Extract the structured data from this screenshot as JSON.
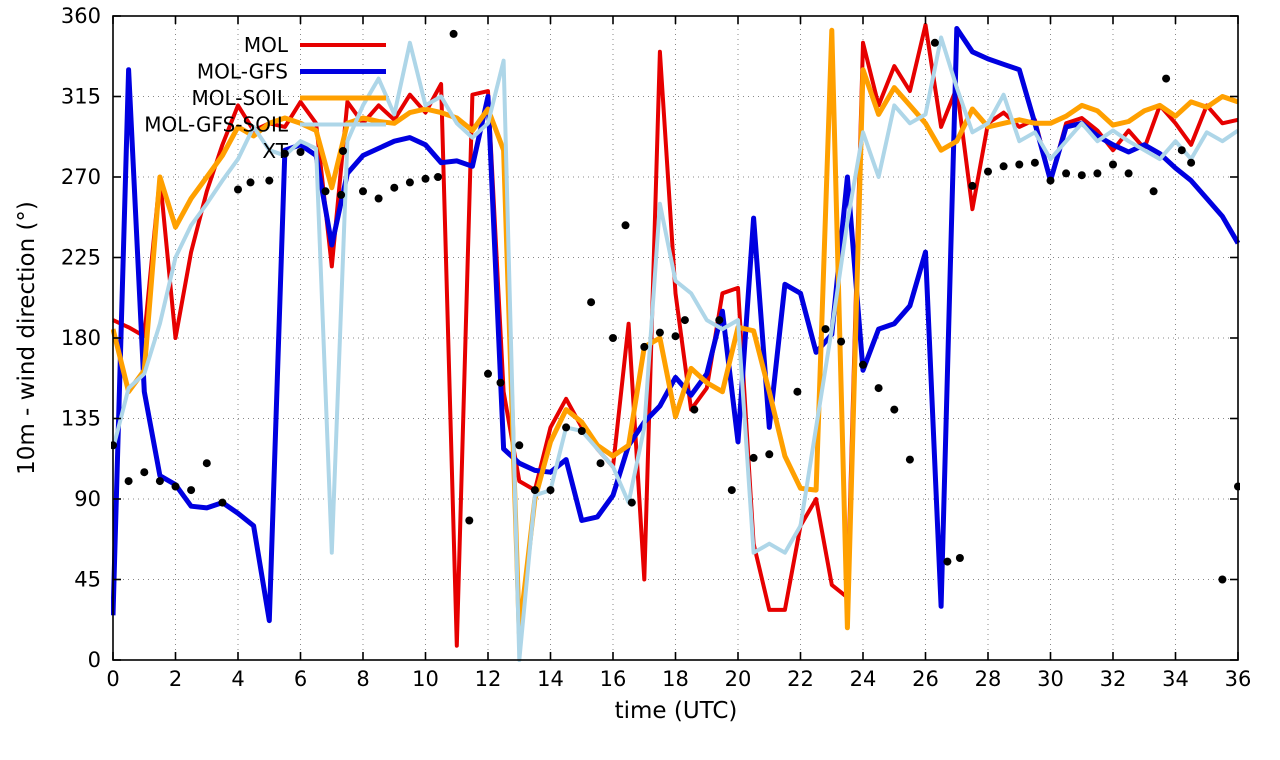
{
  "chart_data": {
    "type": "line",
    "title": "",
    "xlabel": "time (UTC)",
    "ylabel": "10m - wind direction (°)",
    "xlim": [
      0,
      36
    ],
    "ylim": [
      0,
      360
    ],
    "xticks": [
      0,
      2,
      4,
      6,
      8,
      10,
      12,
      14,
      16,
      18,
      20,
      22,
      24,
      26,
      28,
      30,
      32,
      34,
      36
    ],
    "yticks": [
      0,
      45,
      90,
      135,
      180,
      225,
      270,
      315,
      360
    ],
    "grid": "dotted",
    "legend_position": "top-left",
    "x_step": 0.5,
    "series": [
      {
        "name": "MOL",
        "type": "line",
        "color": "#e60000",
        "width": 4,
        "values": [
          190,
          186,
          181,
          270,
          180,
          228,
          262,
          288,
          310,
          296,
          300,
          298,
          312,
          300,
          220,
          312,
          300,
          310,
          302,
          316,
          306,
          322,
          8,
          316,
          318,
          150,
          100,
          95,
          130,
          146,
          130,
          118,
          108,
          188,
          45,
          340,
          205,
          140,
          152,
          205,
          208,
          65,
          28,
          28,
          75,
          90,
          42,
          35,
          345,
          310,
          332,
          318,
          355,
          298,
          320,
          252,
          300,
          306,
          298,
          302,
          268,
          300,
          303,
          296,
          285,
          296,
          286,
          310,
          300,
          288,
          310,
          300,
          302
        ]
      },
      {
        "name": "MOL-GFS",
        "type": "line",
        "color": "#0000e0",
        "width": 5,
        "values": [
          25,
          330,
          150,
          103,
          98,
          86,
          85,
          88,
          82,
          75,
          22,
          285,
          288,
          282,
          232,
          272,
          282,
          286,
          290,
          292,
          288,
          278,
          279,
          276,
          315,
          118,
          110,
          106,
          105,
          112,
          78,
          80,
          92,
          120,
          133,
          142,
          158,
          148,
          160,
          195,
          122,
          247,
          130,
          210,
          205,
          172,
          182,
          270,
          162,
          185,
          188,
          198,
          228,
          30,
          353,
          340,
          336,
          333,
          330,
          300,
          268,
          298,
          300,
          293,
          288,
          284,
          288,
          283,
          275,
          268,
          258,
          248,
          233
        ]
      },
      {
        "name": "MOL-SOIL",
        "type": "line",
        "color": "#ffa000",
        "width": 5,
        "values": [
          185,
          150,
          162,
          270,
          242,
          258,
          270,
          282,
          298,
          293,
          300,
          303,
          300,
          296,
          264,
          300,
          303,
          301,
          300,
          306,
          308,
          306,
          303,
          296,
          308,
          285,
          15,
          90,
          122,
          140,
          133,
          120,
          114,
          120,
          175,
          180,
          136,
          163,
          155,
          150,
          186,
          184,
          150,
          114,
          96,
          95,
          352,
          18,
          330,
          305,
          320,
          310,
          300,
          285,
          290,
          308,
          298,
          300,
          302,
          300,
          300,
          304,
          310,
          307,
          299,
          301,
          307,
          310,
          304,
          312,
          309,
          315,
          312
        ]
      },
      {
        "name": "MOL-GFS-SOIL",
        "type": "line",
        "color": "#aed6e8",
        "width": 4,
        "values": [
          118,
          152,
          160,
          188,
          225,
          243,
          255,
          268,
          280,
          298,
          285,
          282,
          290,
          286,
          60,
          290,
          310,
          325,
          305,
          345,
          310,
          315,
          300,
          292,
          300,
          335,
          0,
          92,
          95,
          130,
          128,
          118,
          108,
          88,
          130,
          255,
          212,
          205,
          190,
          185,
          190,
          60,
          65,
          60,
          75,
          130,
          185,
          245,
          295,
          270,
          310,
          300,
          305,
          348,
          320,
          295,
          300,
          316,
          290,
          295,
          280,
          290,
          300,
          290,
          296,
          290,
          285,
          280,
          290,
          280,
          295,
          290,
          296
        ]
      },
      {
        "name": "XT",
        "type": "scatter",
        "color": "#000000",
        "width": 4,
        "points": [
          [
            0,
            120
          ],
          [
            0.5,
            100
          ],
          [
            1,
            105
          ],
          [
            1.5,
            100
          ],
          [
            2,
            97
          ],
          [
            2.5,
            95
          ],
          [
            3,
            110
          ],
          [
            3.5,
            88
          ],
          [
            4,
            263
          ],
          [
            4.4,
            267
          ],
          [
            5,
            268
          ],
          [
            5.5,
            283
          ],
          [
            6,
            284
          ],
          [
            6.8,
            262
          ],
          [
            7.3,
            260
          ],
          [
            8,
            262
          ],
          [
            8.5,
            258
          ],
          [
            9,
            264
          ],
          [
            9.5,
            267
          ],
          [
            10,
            269
          ],
          [
            10.4,
            270
          ],
          [
            10.9,
            350
          ],
          [
            11.4,
            78
          ],
          [
            12,
            160
          ],
          [
            12.4,
            155
          ],
          [
            13,
            120
          ],
          [
            13.5,
            95
          ],
          [
            14,
            95
          ],
          [
            14.5,
            130
          ],
          [
            15,
            128
          ],
          [
            15.3,
            200
          ],
          [
            15.6,
            110
          ],
          [
            16,
            180
          ],
          [
            16.4,
            243
          ],
          [
            16.6,
            88
          ],
          [
            17,
            175
          ],
          [
            17.5,
            183
          ],
          [
            18,
            181
          ],
          [
            18.3,
            190
          ],
          [
            18.6,
            140
          ],
          [
            19.4,
            190
          ],
          [
            19.8,
            95
          ],
          [
            20.5,
            113
          ],
          [
            21,
            115
          ],
          [
            21.9,
            150
          ],
          [
            22.8,
            185
          ],
          [
            23.3,
            178
          ],
          [
            24,
            165
          ],
          [
            24.5,
            152
          ],
          [
            25,
            140
          ],
          [
            25.5,
            112
          ],
          [
            26.3,
            345
          ],
          [
            26.7,
            55
          ],
          [
            27.1,
            57
          ],
          [
            27.5,
            265
          ],
          [
            28,
            273
          ],
          [
            28.5,
            276
          ],
          [
            29,
            277
          ],
          [
            29.5,
            278
          ],
          [
            30,
            268
          ],
          [
            30.5,
            272
          ],
          [
            31,
            271
          ],
          [
            31.5,
            272
          ],
          [
            32,
            277
          ],
          [
            32.5,
            272
          ],
          [
            33.3,
            262
          ],
          [
            33.7,
            325
          ],
          [
            34.2,
            285
          ],
          [
            34.5,
            278
          ],
          [
            35.5,
            45
          ],
          [
            36,
            97
          ]
        ]
      }
    ]
  }
}
